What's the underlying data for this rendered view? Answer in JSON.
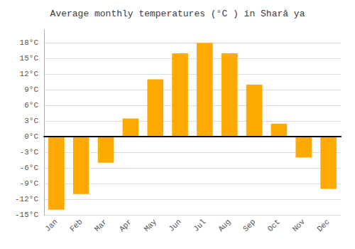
{
  "chart_data": {
    "type": "bar",
    "title": "Average monthly temperatures (°C ) in Sharâ ya",
    "categories": [
      "Jan",
      "Feb",
      "Mar",
      "Apr",
      "May",
      "Jun",
      "Jul",
      "Aug",
      "Sep",
      "Oct",
      "Nov",
      "Dec"
    ],
    "values": [
      -14,
      -11,
      -5,
      3.5,
      11,
      16,
      18,
      16,
      10,
      2.5,
      -4,
      -10
    ],
    "color": "#FFAA00",
    "ylim": [
      -15,
      20.5
    ],
    "yticks": [
      {
        "value": -15,
        "label": "-15°C"
      },
      {
        "value": -12,
        "label": "-12°C"
      },
      {
        "value": -9,
        "label": "-9°C"
      },
      {
        "value": -6,
        "label": "-6°C"
      },
      {
        "value": -3,
        "label": "-3°C"
      },
      {
        "value": 0,
        "label": "0°C"
      },
      {
        "value": 3,
        "label": "3°C"
      },
      {
        "value": 6,
        "label": "6°C"
      },
      {
        "value": 9,
        "label": "9°C"
      },
      {
        "value": 12,
        "label": "12°C"
      },
      {
        "value": 15,
        "label": "15°C"
      },
      {
        "value": 18,
        "label": "18°C"
      }
    ],
    "grid": true
  }
}
